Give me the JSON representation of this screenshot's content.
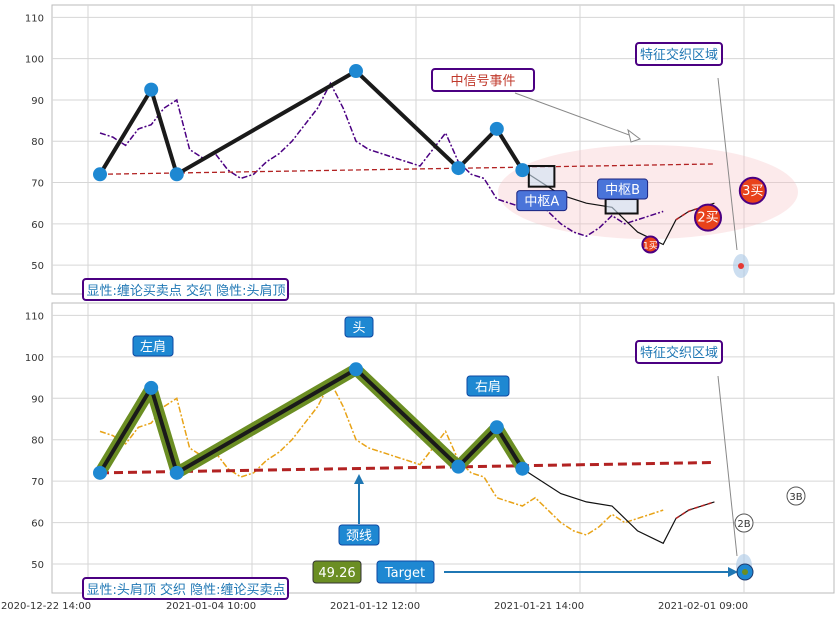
{
  "chart_data": [
    {
      "type": "line",
      "title": "",
      "ylim": [
        43,
        113
      ],
      "yticks": [
        50,
        60,
        70,
        80,
        90,
        100,
        110
      ],
      "price_series": {
        "color": "#4b0082",
        "x": [
          0,
          1,
          2,
          3,
          4,
          5,
          6,
          7,
          8,
          9,
          10,
          11,
          12,
          13,
          14,
          15,
          16,
          17,
          18,
          19,
          20,
          21,
          22,
          23,
          24,
          25,
          26,
          27,
          28,
          29,
          30,
          31,
          32,
          33,
          34,
          35,
          36,
          37,
          38,
          39,
          40,
          41,
          42,
          43,
          44
        ],
        "y": [
          82,
          81,
          79,
          83,
          84,
          88,
          90,
          78,
          76,
          77,
          73,
          71,
          72,
          75,
          77,
          80,
          84,
          88,
          94,
          88,
          80,
          78,
          77,
          76,
          75,
          74,
          78,
          82,
          75,
          72,
          71,
          66,
          65,
          64,
          66,
          63,
          60,
          58,
          57,
          59,
          62,
          60,
          61,
          62,
          63
        ]
      },
      "zigzag": {
        "x": [
          0,
          4,
          6,
          20,
          28,
          31,
          33
        ],
        "y": [
          72,
          92.5,
          72,
          97,
          73.5,
          83,
          73
        ]
      },
      "neckline": {
        "x": [
          0,
          48
        ],
        "y": [
          72,
          74.5
        ]
      },
      "continuation": {
        "x": [
          33,
          36,
          38,
          40,
          42,
          44,
          45,
          46,
          48
        ],
        "y": [
          73,
          67,
          65,
          64,
          58,
          55,
          61,
          63,
          65
        ]
      },
      "zhongshu": [
        {
          "label": "中枢A",
          "x": [
            33.5,
            35.5
          ],
          "y": [
            69,
            74
          ]
        },
        {
          "label": "中枢B",
          "x": [
            39.5,
            42
          ],
          "y": [
            62.5,
            66
          ]
        }
      ],
      "signals": [
        {
          "label": "1买",
          "x": 43,
          "y": 55
        },
        {
          "label": "2买",
          "x": 47.5,
          "y": 61.5
        },
        {
          "label": "3买",
          "x": 51,
          "y": 68
        }
      ],
      "annotations": {
        "event": "中信号事件",
        "feature_zone": "特征交织区域",
        "legend_note": "显性:缠论买卖点 交织 隐性:头肩顶"
      }
    },
    {
      "type": "line",
      "title": "",
      "ylim": [
        43,
        113
      ],
      "yticks": [
        50,
        60,
        70,
        80,
        90,
        100,
        110
      ],
      "x_tick_labels": [
        "2020-12-22 14:00",
        "2021-01-04 10:00",
        "2021-01-12 12:00",
        "2021-01-21 14:00",
        "2021-02-01 09:00"
      ],
      "price_series": {
        "color": "#e8a317",
        "x": [
          0,
          1,
          2,
          3,
          4,
          5,
          6,
          7,
          8,
          9,
          10,
          11,
          12,
          13,
          14,
          15,
          16,
          17,
          18,
          19,
          20,
          21,
          22,
          23,
          24,
          25,
          26,
          27,
          28,
          29,
          30,
          31,
          32,
          33,
          34,
          35,
          36,
          37,
          38,
          39,
          40,
          41,
          42,
          43,
          44
        ],
        "y": [
          82,
          81,
          79,
          83,
          84,
          88,
          90,
          78,
          76,
          77,
          73,
          71,
          72,
          75,
          77,
          80,
          84,
          88,
          94,
          88,
          80,
          78,
          77,
          76,
          75,
          74,
          78,
          82,
          75,
          72,
          71,
          66,
          65,
          64,
          66,
          63,
          60,
          58,
          57,
          59,
          62,
          60,
          61,
          62,
          63
        ]
      },
      "zigzag": {
        "x": [
          0,
          4,
          6,
          20,
          28,
          31,
          33
        ],
        "y": [
          72,
          92.5,
          72,
          97,
          73.5,
          83,
          73
        ]
      },
      "neckline": {
        "x": [
          0,
          48
        ],
        "y": [
          72,
          74.5
        ]
      },
      "continuation": {
        "x": [
          33,
          36,
          38,
          40,
          42,
          44,
          45,
          46,
          48
        ],
        "y": [
          73,
          67,
          65,
          64,
          58,
          55,
          61,
          63,
          65
        ]
      },
      "labels": {
        "left_shoulder": "左肩",
        "head": "头",
        "right_shoulder": "右肩",
        "neckline": "颈线",
        "feature_zone": "特征交织区域",
        "target_value": "49.26",
        "target_label": "Target",
        "second_buy": "2B",
        "third_buy": "3B",
        "legend_note": "显性:头肩顶 交织 隐性:缠论买卖点"
      },
      "target": {
        "x": 49,
        "y": 49.26
      }
    }
  ]
}
